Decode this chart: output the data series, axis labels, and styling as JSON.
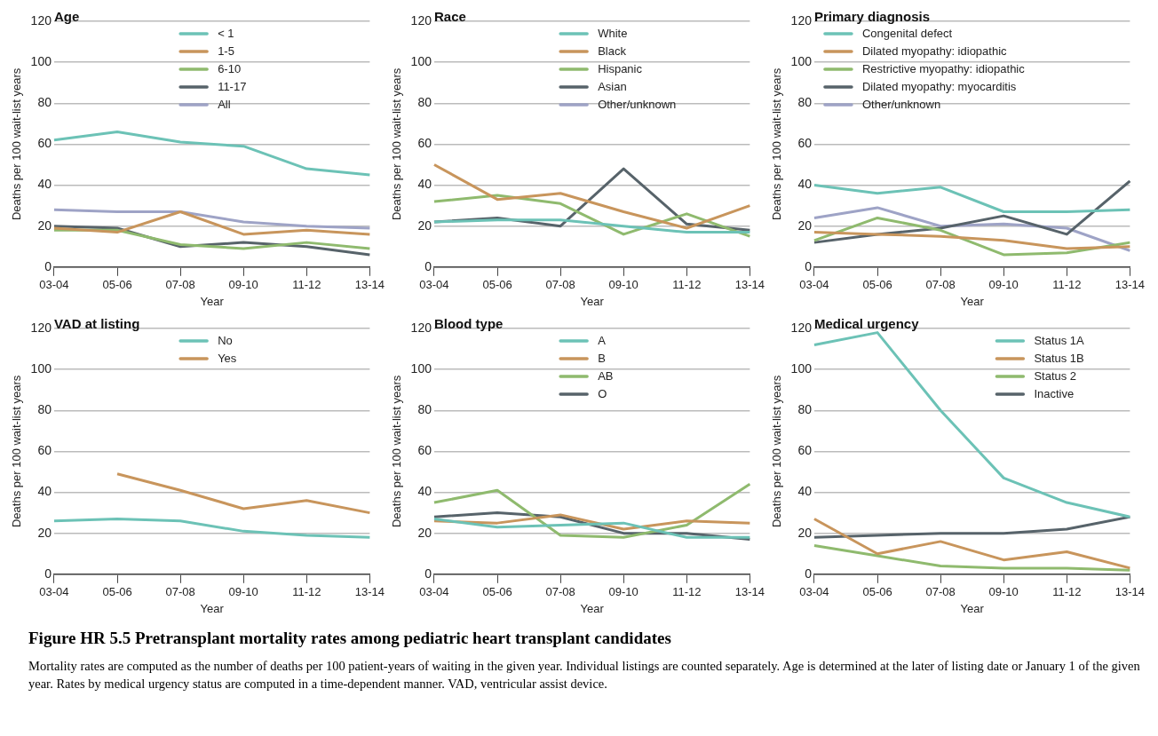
{
  "chart_data": [
    {
      "type": "line",
      "title": "Age",
      "xlabel": "Year",
      "ylabel": "Deaths per 100 wait-list years",
      "categories": [
        "03-04",
        "05-06",
        "07-08",
        "09-10",
        "11-12",
        "13-14"
      ],
      "ylim": [
        0,
        120
      ],
      "yticks": [
        0,
        20,
        40,
        60,
        80,
        100,
        120
      ],
      "grid": "y",
      "legend": "top",
      "series": [
        {
          "name": "< 1",
          "color": "#6cc2b6",
          "values": [
            62,
            66,
            61,
            59,
            48,
            45
          ]
        },
        {
          "name": "1-5",
          "color": "#c8955c",
          "values": [
            19,
            17,
            27,
            16,
            18,
            16
          ]
        },
        {
          "name": "6-10",
          "color": "#8fba6e",
          "values": [
            18,
            18,
            11,
            9,
            12,
            9
          ]
        },
        {
          "name": "11-17",
          "color": "#57636a",
          "values": [
            20,
            19,
            10,
            12,
            10,
            6
          ]
        },
        {
          "name": "All",
          "color": "#9ea3c6",
          "values": [
            28,
            27,
            27,
            22,
            20,
            19
          ]
        }
      ]
    },
    {
      "type": "line",
      "title": "Race",
      "xlabel": "Year",
      "ylabel": "Deaths per 100 wait-list years",
      "categories": [
        "03-04",
        "05-06",
        "07-08",
        "09-10",
        "11-12",
        "13-14"
      ],
      "ylim": [
        0,
        120
      ],
      "yticks": [
        0,
        20,
        40,
        60,
        80,
        100,
        120
      ],
      "grid": "y",
      "legend": "top",
      "series": [
        {
          "name": "White",
          "color": "#6cc2b6",
          "values": [
            22,
            23,
            23,
            20,
            17,
            17
          ]
        },
        {
          "name": "Black",
          "color": "#c8955c",
          "values": [
            50,
            33,
            36,
            27,
            19,
            30
          ]
        },
        {
          "name": "Hispanic",
          "color": "#8fba6e",
          "values": [
            32,
            35,
            31,
            16,
            26,
            15
          ]
        },
        {
          "name": "Asian",
          "color": "#57636a",
          "values": [
            22,
            24,
            20,
            48,
            21,
            18
          ]
        },
        {
          "name": "Other/unknown",
          "color": "#9ea3c6",
          "values": [
            null,
            null,
            null,
            null,
            null,
            null
          ]
        }
      ]
    },
    {
      "type": "line",
      "title": "Primary diagnosis",
      "xlabel": "Year",
      "ylabel": "Deaths per 100 wait-list years",
      "categories": [
        "03-04",
        "05-06",
        "07-08",
        "09-10",
        "11-12",
        "13-14"
      ],
      "ylim": [
        0,
        120
      ],
      "yticks": [
        0,
        20,
        40,
        60,
        80,
        100,
        120
      ],
      "grid": "y",
      "legend": "top left",
      "series": [
        {
          "name": "Congenital defect",
          "color": "#6cc2b6",
          "values": [
            40,
            36,
            39,
            27,
            27,
            28
          ]
        },
        {
          "name": "Dilated myopathy: idiopathic",
          "color": "#c8955c",
          "values": [
            17,
            16,
            15,
            13,
            9,
            10
          ]
        },
        {
          "name": "Restrictive myopathy: idiopathic",
          "color": "#8fba6e",
          "values": [
            13,
            24,
            18,
            6,
            7,
            12
          ]
        },
        {
          "name": "Dilated myopathy: myocarditis",
          "color": "#57636a",
          "values": [
            12,
            16,
            19,
            25,
            16,
            42
          ]
        },
        {
          "name": "Other/unknown",
          "color": "#9ea3c6",
          "values": [
            24,
            29,
            20,
            21,
            19,
            8
          ]
        }
      ]
    },
    {
      "type": "line",
      "title": "VAD at listing",
      "xlabel": "Year",
      "ylabel": "Deaths per 100 wait-list years",
      "categories": [
        "03-04",
        "05-06",
        "07-08",
        "09-10",
        "11-12",
        "13-14"
      ],
      "ylim": [
        0,
        120
      ],
      "yticks": [
        0,
        20,
        40,
        60,
        80,
        100,
        120
      ],
      "grid": "y",
      "legend": "top",
      "series": [
        {
          "name": "No",
          "color": "#6cc2b6",
          "values": [
            26,
            27,
            26,
            21,
            19,
            18
          ]
        },
        {
          "name": "Yes",
          "color": "#c8955c",
          "values": [
            null,
            49,
            41,
            32,
            36,
            30
          ]
        }
      ]
    },
    {
      "type": "line",
      "title": "Blood type",
      "xlabel": "Year",
      "ylabel": "Deaths per 100 wait-list years",
      "categories": [
        "03-04",
        "05-06",
        "07-08",
        "09-10",
        "11-12",
        "13-14"
      ],
      "ylim": [
        0,
        120
      ],
      "yticks": [
        0,
        20,
        40,
        60,
        80,
        100,
        120
      ],
      "grid": "y",
      "legend": "top",
      "series": [
        {
          "name": "A",
          "color": "#6cc2b6",
          "values": [
            27,
            23,
            24,
            25,
            18,
            18
          ]
        },
        {
          "name": "B",
          "color": "#c8955c",
          "values": [
            26,
            25,
            29,
            22,
            26,
            25
          ]
        },
        {
          "name": "AB",
          "color": "#8fba6e",
          "values": [
            35,
            41,
            19,
            18,
            24,
            44
          ]
        },
        {
          "name": "O",
          "color": "#57636a",
          "values": [
            28,
            30,
            28,
            20,
            20,
            17
          ]
        }
      ]
    },
    {
      "type": "line",
      "title": "Medical urgency",
      "xlabel": "Year",
      "ylabel": "Deaths per 100 wait-list years",
      "categories": [
        "03-04",
        "05-06",
        "07-08",
        "09-10",
        "11-12",
        "13-14"
      ],
      "ylim": [
        0,
        120
      ],
      "yticks": [
        0,
        20,
        40,
        60,
        80,
        100,
        120
      ],
      "grid": "y",
      "legend": "top right",
      "annotations": [
        "Figure HR 5.5 Pretransplant mortality rates among pediatric heart transplant candidates",
        "Mortality rates are computed as the number of deaths per 100 patient-years of waiting in the given year. Individual listings are counted separately. Age is determined at the later of listing date or January 1 of the given year. Rates by medical urgency status are computed in a time-dependent manner. VAD, ventricular assist device."
      ],
      "series": [
        {
          "name": "Status 1A",
          "color": "#6cc2b6",
          "values": [
            112,
            118,
            80,
            47,
            35,
            28
          ]
        },
        {
          "name": "Status 1B",
          "color": "#c8955c",
          "values": [
            27,
            10,
            16,
            7,
            11,
            3
          ]
        },
        {
          "name": "Status 2",
          "color": "#8fba6e",
          "values": [
            14,
            9,
            4,
            3,
            3,
            2
          ]
        },
        {
          "name": "Inactive",
          "color": "#57636a",
          "values": [
            18,
            19,
            20,
            20,
            22,
            28
          ]
        }
      ]
    }
  ]
}
